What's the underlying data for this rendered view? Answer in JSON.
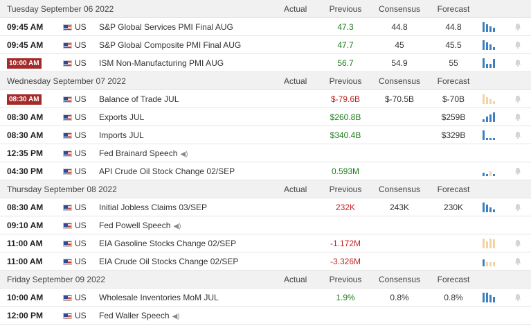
{
  "colors": {
    "up_bar": "#3d7fc1",
    "down_bar": "#f2d3a1",
    "positive": "#1b7c1b",
    "negative": "#c32222",
    "important_badge": "#a52a2a"
  },
  "columns": {
    "actual": "Actual",
    "previous": "Previous",
    "consensus": "Consensus",
    "forecast": "Forecast"
  },
  "days": [
    {
      "date": "Tuesday September 06 2022",
      "events": [
        {
          "time": "09:45 AM",
          "highlight": false,
          "country": "US",
          "event": "S&P Global Services PMI Final AUG",
          "speech": false,
          "actual": "",
          "previous": "47.3",
          "previous_tone": "positive",
          "consensus": "44.8",
          "forecast": "44.8",
          "spark": [
            [
              "up",
              1.0
            ],
            [
              "up",
              0.8
            ],
            [
              "up",
              0.55
            ],
            [
              "up",
              0.4
            ]
          ]
        },
        {
          "time": "09:45 AM",
          "highlight": false,
          "country": "US",
          "event": "S&P Global Composite PMI Final AUG",
          "speech": false,
          "actual": "",
          "previous": "47.7",
          "previous_tone": "positive",
          "consensus": "45",
          "forecast": "45.5",
          "spark": [
            [
              "up",
              1.0
            ],
            [
              "up",
              0.75
            ],
            [
              "up",
              0.55
            ],
            [
              "up",
              0.3
            ]
          ]
        },
        {
          "time": "10:00 AM",
          "highlight": true,
          "country": "US",
          "event": "ISM Non-Manufacturing PMI AUG",
          "speech": false,
          "actual": "",
          "previous": "56.7",
          "previous_tone": "positive",
          "consensus": "54.9",
          "forecast": "55",
          "spark": [
            [
              "up",
              1.0
            ],
            [
              "up",
              0.45
            ],
            [
              "up",
              0.4
            ],
            [
              "up",
              0.9
            ]
          ]
        }
      ]
    },
    {
      "date": "Wednesday September 07 2022",
      "events": [
        {
          "time": "08:30 AM",
          "highlight": true,
          "country": "US",
          "event": "Balance of Trade JUL",
          "speech": false,
          "actual": "",
          "previous": "$-79.6B",
          "previous_tone": "negative",
          "consensus": "$-70.5B",
          "forecast": "$-70B",
          "spark": [
            [
              "down",
              1.0
            ],
            [
              "down",
              0.7
            ],
            [
              "down",
              0.5
            ],
            [
              "down",
              0.3
            ]
          ]
        },
        {
          "time": "08:30 AM",
          "highlight": false,
          "country": "US",
          "event": "Exports JUL",
          "speech": false,
          "actual": "",
          "previous": "$260.8B",
          "previous_tone": "positive",
          "consensus": "",
          "forecast": "$259B",
          "spark": [
            [
              "up",
              0.3
            ],
            [
              "up",
              0.55
            ],
            [
              "up",
              0.75
            ],
            [
              "up",
              1.0
            ]
          ]
        },
        {
          "time": "08:30 AM",
          "highlight": false,
          "country": "US",
          "event": "Imports JUL",
          "speech": false,
          "actual": "",
          "previous": "$340.4B",
          "previous_tone": "positive",
          "consensus": "",
          "forecast": "$329B",
          "spark": [
            [
              "up",
              1.0
            ],
            [
              "up",
              0.2
            ],
            [
              "up",
              0.2
            ],
            [
              "up",
              0.2
            ]
          ]
        },
        {
          "time": "12:35 PM",
          "highlight": false,
          "country": "US",
          "event": "Fed Brainard Speech",
          "speech": true,
          "actual": "",
          "previous": "",
          "previous_tone": "",
          "consensus": "",
          "forecast": "",
          "spark": []
        },
        {
          "time": "04:30 PM",
          "highlight": false,
          "country": "US",
          "event": "API Crude Oil Stock Change 02/SEP",
          "speech": false,
          "actual": "",
          "previous": "0.593M",
          "previous_tone": "positive",
          "consensus": "",
          "forecast": "",
          "spark": [
            [
              "up",
              0.35
            ],
            [
              "up",
              0.2
            ],
            [
              "down",
              0.5
            ],
            [
              "up",
              0.2
            ]
          ]
        }
      ]
    },
    {
      "date": "Thursday September 08 2022",
      "events": [
        {
          "time": "08:30 AM",
          "highlight": false,
          "country": "US",
          "event": "Initial Jobless Claims 03/SEP",
          "speech": false,
          "actual": "",
          "previous": "232K",
          "previous_tone": "negative",
          "consensus": "243K",
          "forecast": "230K",
          "spark": [
            [
              "up",
              1.0
            ],
            [
              "up",
              0.75
            ],
            [
              "up",
              0.5
            ],
            [
              "up",
              0.3
            ]
          ]
        },
        {
          "time": "09:10 AM",
          "highlight": false,
          "country": "US",
          "event": "Fed Powell Speech",
          "speech": true,
          "actual": "",
          "previous": "",
          "previous_tone": "",
          "consensus": "",
          "forecast": "",
          "spark": []
        },
        {
          "time": "11:00 AM",
          "highlight": false,
          "country": "US",
          "event": "EIA Gasoline Stocks Change 02/SEP",
          "speech": false,
          "actual": "",
          "previous": "-1.172M",
          "previous_tone": "negative",
          "consensus": "",
          "forecast": "",
          "spark": [
            [
              "down",
              1.0
            ],
            [
              "down",
              0.7
            ],
            [
              "down",
              1.0
            ],
            [
              "down",
              0.9
            ]
          ]
        },
        {
          "time": "11:00 AM",
          "highlight": false,
          "country": "US",
          "event": "EIA Crude Oil Stocks Change 02/SEP",
          "speech": false,
          "actual": "",
          "previous": "-3.326M",
          "previous_tone": "negative",
          "consensus": "",
          "forecast": "",
          "spark": [
            [
              "up",
              0.7
            ],
            [
              "down",
              0.4
            ],
            [
              "down",
              0.4
            ],
            [
              "down",
              0.4
            ]
          ]
        }
      ]
    },
    {
      "date": "Friday September 09 2022",
      "events": [
        {
          "time": "10:00 AM",
          "highlight": false,
          "country": "US",
          "event": "Wholesale Inventories MoM JUL",
          "speech": false,
          "actual": "",
          "previous": "1.9%",
          "previous_tone": "positive",
          "consensus": "0.8%",
          "forecast": "0.8%",
          "spark": [
            [
              "up",
              1.0
            ],
            [
              "up",
              1.0
            ],
            [
              "up",
              0.75
            ],
            [
              "up",
              0.55
            ]
          ]
        },
        {
          "time": "12:00 PM",
          "highlight": false,
          "country": "US",
          "event": "Fed Waller Speech",
          "speech": true,
          "actual": "",
          "previous": "",
          "previous_tone": "",
          "consensus": "",
          "forecast": "",
          "spark": []
        }
      ]
    }
  ]
}
